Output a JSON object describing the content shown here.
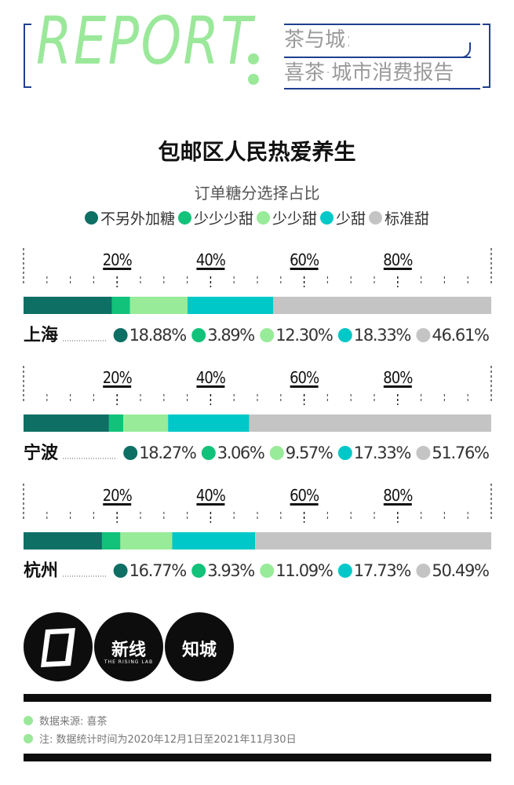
{
  "header": {
    "report": "REPORT",
    "line1": "茶与城:",
    "line2": "喜茶·城市消费报告"
  },
  "title": "包邮区人民热爱养生",
  "colors": {
    "不另外加糖": "#0e6f64",
    "少少少甜": "#12c27a",
    "少少甜": "#98eb98",
    "少甜": "#00c8c8",
    "标准甜": "#c4c4c4",
    "accent_green": "#9be89b",
    "frame_blue": "#1f3f8f"
  },
  "chart_data": {
    "type": "bar",
    "stacked": true,
    "orientation": "horizontal",
    "title": "订单糖分选择占比",
    "xlim": [
      0,
      100
    ],
    "tick_labels": [
      "20%",
      "40%",
      "60%",
      "80%"
    ],
    "tick_values": [
      20,
      40,
      60,
      80
    ],
    "legend": [
      "不另外加糖",
      "少少少甜",
      "少少甜",
      "少甜",
      "标准甜"
    ],
    "legend_position": "top",
    "categories": [
      "上海",
      "宁波",
      "杭州"
    ],
    "series": [
      {
        "name": "不另外加糖",
        "values": [
          18.88,
          18.27,
          16.77
        ],
        "labels": [
          "18.88%",
          "18.27%",
          "16.77%"
        ]
      },
      {
        "name": "少少少甜",
        "values": [
          3.89,
          3.06,
          3.93
        ],
        "labels": [
          "3.89%",
          "3.06%",
          "3.93%"
        ]
      },
      {
        "name": "少少甜",
        "values": [
          12.3,
          9.57,
          11.09
        ],
        "labels": [
          "12.30%",
          "9.57%",
          "11.09%"
        ]
      },
      {
        "name": "少甜",
        "values": [
          18.33,
          17.33,
          17.73
        ],
        "labels": [
          "18.33%",
          "17.33%",
          "17.73%"
        ]
      },
      {
        "name": "标准甜",
        "values": [
          46.61,
          51.76,
          50.49
        ],
        "labels": [
          "46.61%",
          "51.76%",
          "50.49%"
        ]
      }
    ]
  },
  "logos": {
    "logo2_text": "新线",
    "logo2_sub": "THE RISING LAB",
    "logo3_text": "知城"
  },
  "footer": {
    "source": "数据来源: 喜茶",
    "note": "注: 数据统计时间为2020年12月1日至2021年11月30日"
  }
}
